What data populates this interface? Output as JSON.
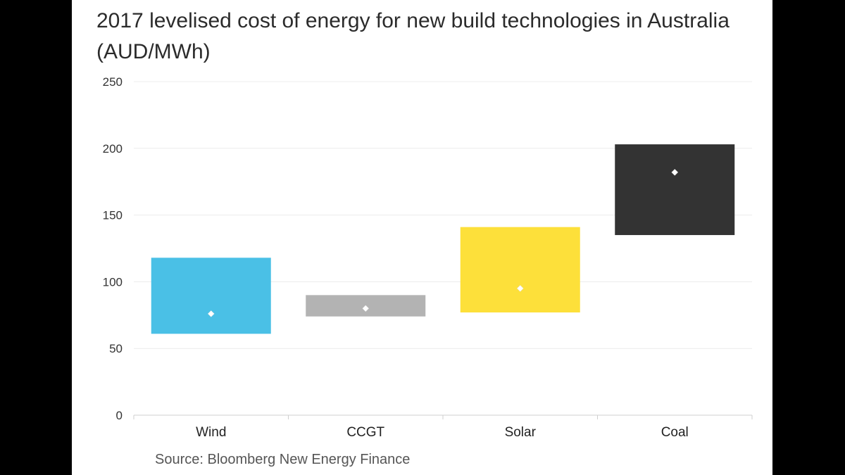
{
  "page": {
    "title": "2017 levelised cost of energy for new build technologies in Australia (AUD/MWh)",
    "source": "Source: Bloomberg New Energy Finance"
  },
  "chart_data": {
    "type": "bar",
    "subtype": "floating-range-with-marker",
    "title": "2017 levelised cost of energy for new build technologies in Australia (AUD/MWh)",
    "xlabel": "",
    "ylabel": "",
    "ylim": [
      0,
      250
    ],
    "yticks": [
      0,
      50,
      100,
      150,
      200,
      250
    ],
    "grid": true,
    "legend": "none",
    "categories": [
      "Wind",
      "CCGT",
      "Solar",
      "Coal"
    ],
    "series": [
      {
        "low": [
          61,
          74,
          77,
          135
        ],
        "high": [
          118,
          90,
          141,
          203
        ],
        "mid": [
          76,
          80,
          95,
          182
        ],
        "colors": [
          "#4ac0e6",
          "#b3b3b3",
          "#fde03a",
          "#333333"
        ]
      }
    ]
  }
}
